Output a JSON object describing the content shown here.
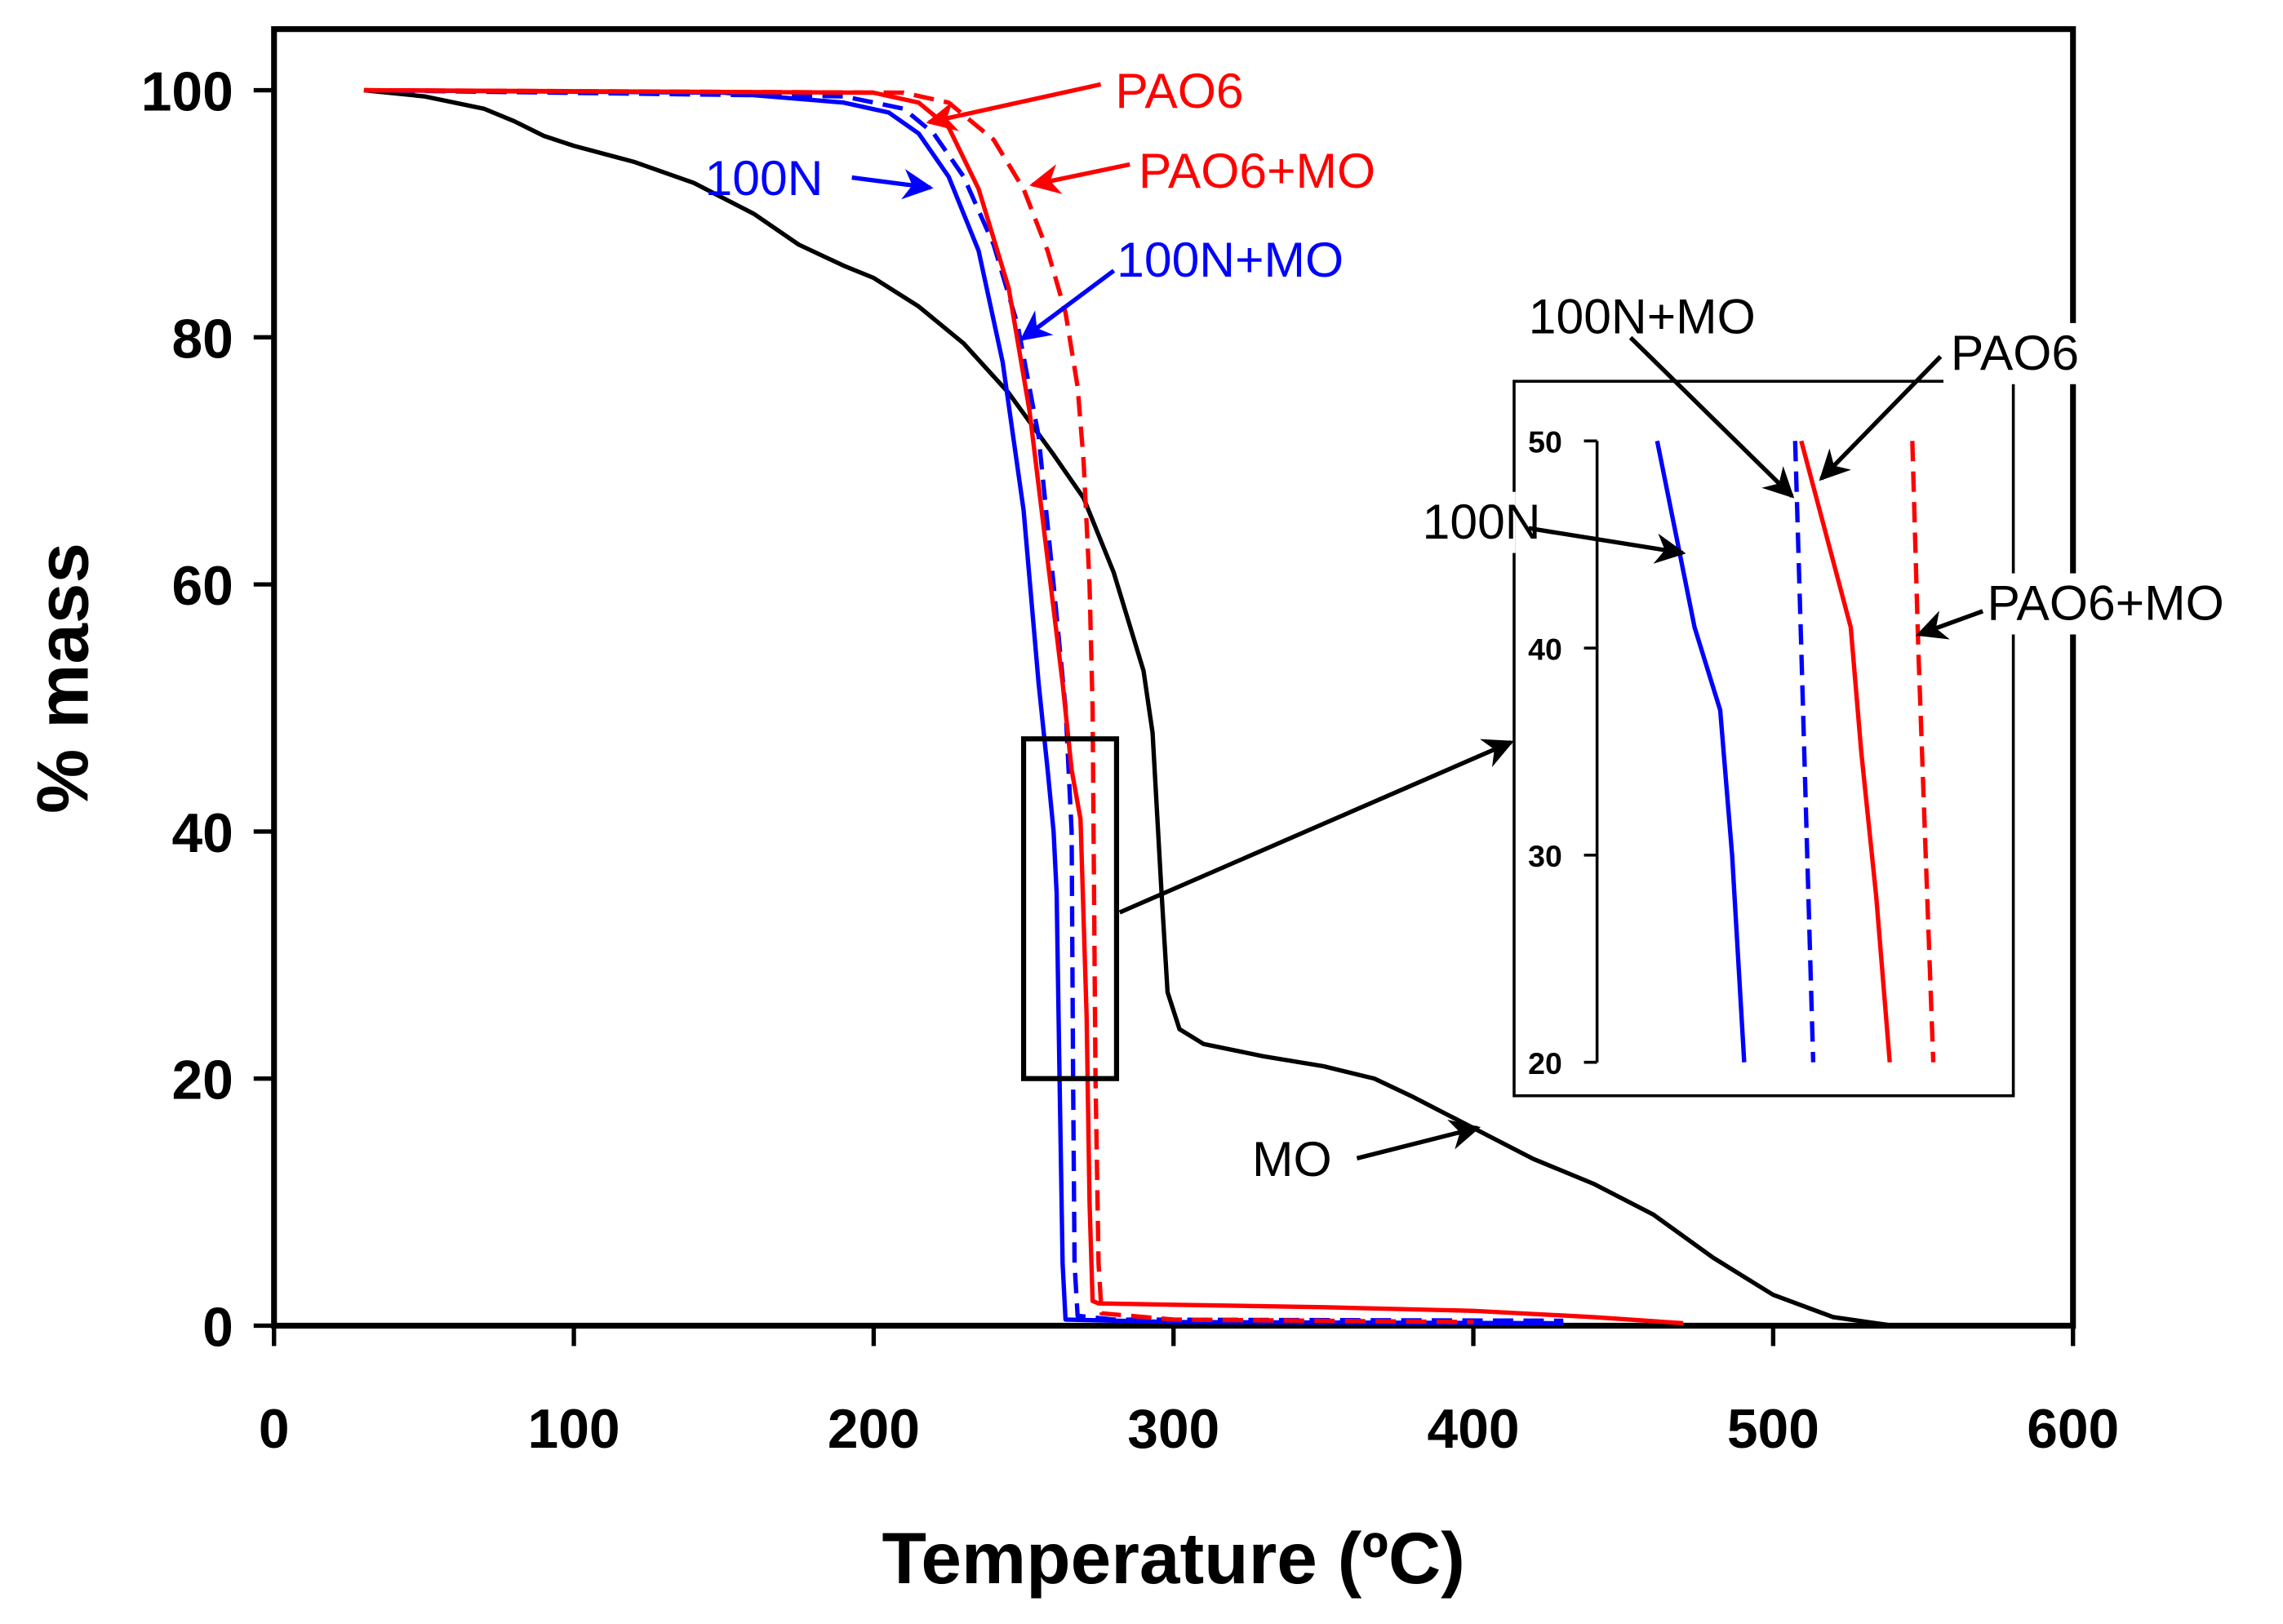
{
  "chart_data": {
    "type": "line",
    "xlabel": "Temperature (ºC)",
    "ylabel": "% mass",
    "xlim": [
      0,
      600
    ],
    "ylim": [
      0,
      100
    ],
    "xticks": [
      "0",
      "100",
      "200",
      "300",
      "400",
      "500",
      "600"
    ],
    "yticks": [
      "0",
      "20",
      "40",
      "60",
      "80",
      "100"
    ],
    "grid": false,
    "series": [
      {
        "name": "MO",
        "color": "#000000",
        "dash": false,
        "points": [
          [
            30,
            100
          ],
          [
            50,
            99.5
          ],
          [
            70,
            98.5
          ],
          [
            80,
            97.5
          ],
          [
            90,
            96.3
          ],
          [
            100,
            95.5
          ],
          [
            120,
            94.2
          ],
          [
            140,
            92.5
          ],
          [
            160,
            90
          ],
          [
            175,
            87.5
          ],
          [
            190,
            85.8
          ],
          [
            200,
            84.8
          ],
          [
            215,
            82.5
          ],
          [
            230,
            79.5
          ],
          [
            245,
            75.5
          ],
          [
            260,
            70.5
          ],
          [
            270,
            67
          ],
          [
            280,
            61
          ],
          [
            290,
            53
          ],
          [
            293,
            48
          ],
          [
            296,
            35
          ],
          [
            298,
            27
          ],
          [
            302,
            24
          ],
          [
            310,
            22.8
          ],
          [
            330,
            21.8
          ],
          [
            350,
            21
          ],
          [
            367,
            20
          ],
          [
            380,
            18.5
          ],
          [
            400,
            16
          ],
          [
            420,
            13.5
          ],
          [
            440,
            11.5
          ],
          [
            460,
            9
          ],
          [
            480,
            5.5
          ],
          [
            500,
            2.5
          ],
          [
            520,
            0.7
          ],
          [
            540,
            0
          ]
        ]
      },
      {
        "name": "100N",
        "color": "#0000ff",
        "dash": false,
        "points": [
          [
            30,
            100
          ],
          [
            150,
            99.8
          ],
          [
            190,
            99
          ],
          [
            205,
            98.2
          ],
          [
            215,
            96.5
          ],
          [
            225,
            93
          ],
          [
            235,
            87
          ],
          [
            243,
            78
          ],
          [
            250,
            66
          ],
          [
            255,
            52
          ],
          [
            258,
            45
          ],
          [
            260,
            40
          ],
          [
            261,
            35
          ],
          [
            262,
            20
          ],
          [
            263,
            5
          ],
          [
            264,
            0.5
          ],
          [
            300,
            0.3
          ],
          [
            430,
            0.2
          ]
        ]
      },
      {
        "name": "100N+MO",
        "color": "#0000ff",
        "dash": true,
        "points": [
          [
            30,
            100
          ],
          [
            190,
            99.5
          ],
          [
            210,
            98.5
          ],
          [
            220,
            96.5
          ],
          [
            230,
            93
          ],
          [
            240,
            87.5
          ],
          [
            248,
            81
          ],
          [
            255,
            72
          ],
          [
            260,
            60
          ],
          [
            264,
            50
          ],
          [
            266,
            40
          ],
          [
            266.5,
            20
          ],
          [
            267,
            5
          ],
          [
            268,
            0.8
          ],
          [
            280,
            0.5
          ],
          [
            430,
            0.4
          ]
        ]
      },
      {
        "name": "PAO6",
        "color": "#ff0000",
        "dash": false,
        "points": [
          [
            30,
            100
          ],
          [
            200,
            99.8
          ],
          [
            215,
            99
          ],
          [
            225,
            97
          ],
          [
            235,
            92
          ],
          [
            245,
            84
          ],
          [
            252,
            74
          ],
          [
            258,
            62
          ],
          [
            263,
            52
          ],
          [
            266,
            45
          ],
          [
            269,
            41
          ],
          [
            271,
            25
          ],
          [
            272,
            10
          ],
          [
            273,
            2
          ],
          [
            275,
            1.8
          ],
          [
            300,
            1.7
          ],
          [
            350,
            1.5
          ],
          [
            400,
            1.2
          ],
          [
            440,
            0.7
          ],
          [
            470,
            0.2
          ]
        ]
      },
      {
        "name": "PAO6+MO",
        "color": "#ff0000",
        "dash": true,
        "points": [
          [
            30,
            100
          ],
          [
            210,
            99.8
          ],
          [
            225,
            99
          ],
          [
            240,
            96
          ],
          [
            250,
            92
          ],
          [
            258,
            87
          ],
          [
            264,
            82
          ],
          [
            268,
            76
          ],
          [
            270,
            70
          ],
          [
            272,
            60
          ],
          [
            273,
            50
          ],
          [
            274,
            20
          ],
          [
            275,
            5
          ],
          [
            276,
            1
          ],
          [
            300,
            0.5
          ],
          [
            400,
            0.3
          ]
        ]
      }
    ],
    "zoom_region": {
      "x": [
        250,
        281
      ],
      "y": [
        20,
        47.5
      ]
    },
    "inset": {
      "xlim": [
        252,
        284
      ],
      "ylim": [
        20,
        50
      ],
      "yticks": [
        "20",
        "30",
        "40",
        "50"
      ],
      "series": [
        {
          "name": "100N",
          "color": "#0000ff",
          "dash": false,
          "points": [
            [
              256,
              50
            ],
            [
              258.5,
              41
            ],
            [
              260.2,
              37
            ],
            [
              261,
              30
            ],
            [
              261.8,
              20
            ]
          ]
        },
        {
          "name": "100N+MO",
          "color": "#0000ff",
          "dash": true,
          "points": [
            [
              265.2,
              50
            ],
            [
              265.6,
              40
            ],
            [
              266,
              30
            ],
            [
              266.4,
              20
            ]
          ]
        },
        {
          "name": "PAO6",
          "color": "#ff0000",
          "dash": false,
          "points": [
            [
              265.6,
              50
            ],
            [
              268.9,
              41
            ],
            [
              269.6,
              35
            ],
            [
              270.6,
              28
            ],
            [
              271.5,
              20
            ]
          ]
        },
        {
          "name": "PAO6+MO",
          "color": "#ff0000",
          "dash": true,
          "points": [
            [
              273,
              50
            ],
            [
              273.4,
              40
            ],
            [
              273.9,
              30
            ],
            [
              274.4,
              20
            ]
          ]
        }
      ]
    },
    "annotations": {
      "pao6": "PAO6",
      "pao6_mo": "PAO6+MO",
      "n100": "100N",
      "n100_mo": "100N+MO",
      "inset_n100_mo": "100N+MO",
      "inset_pao6": "PAO6",
      "inset_n100": "100N",
      "inset_pao6_mo": "PAO6+MO",
      "mo": "MO"
    }
  }
}
